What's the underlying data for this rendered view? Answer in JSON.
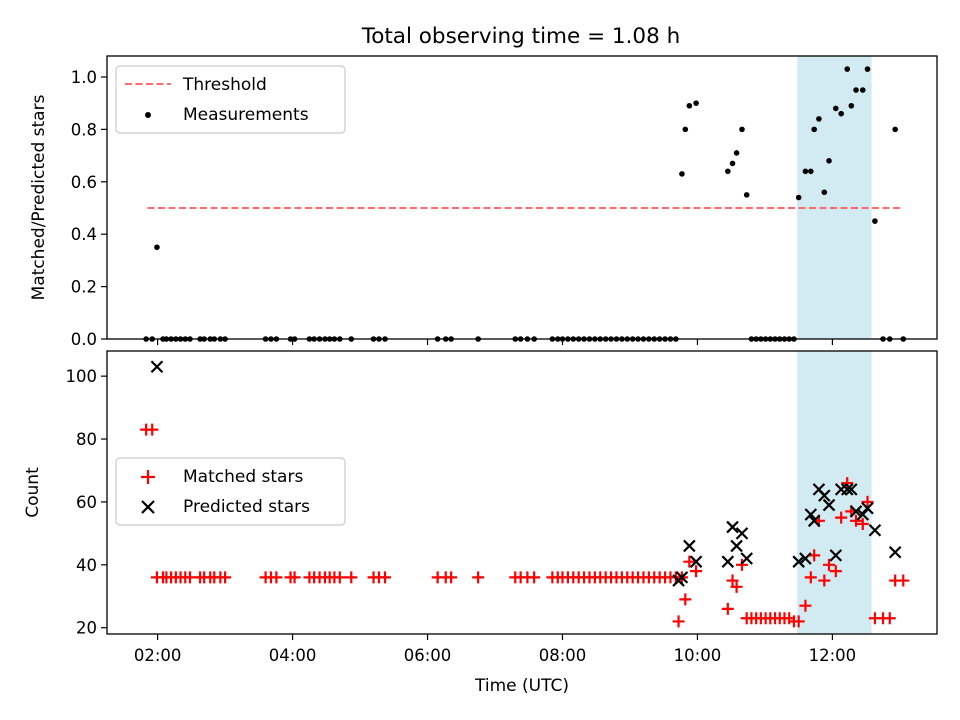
{
  "figure": {
    "title": "Total observing time = 1.08 h"
  },
  "chart_data": [
    {
      "type": "scatter",
      "panel": "top",
      "title": "Total observing time = 1.08 h",
      "ylabel": "Matched/Predicted stars",
      "xlabel": "",
      "x_unit": "hours UTC",
      "xlim": [
        1.25,
        13.55
      ],
      "ylim": [
        0.0,
        1.08
      ],
      "yticks": [
        0.0,
        0.2,
        0.4,
        0.6,
        0.8,
        1.0
      ],
      "ytick_labels": [
        "0.0",
        "0.2",
        "0.4",
        "0.6",
        "0.8",
        "1.0"
      ],
      "grid": false,
      "legend_position": "top-left",
      "highlight_span": [
        11.48,
        12.58
      ],
      "highlight_color": "#add8e6",
      "threshold": {
        "name": "Threshold",
        "y": 0.5,
        "x": [
          1.85,
          13.0
        ],
        "color": "#ff6b6b",
        "style": "dashed"
      },
      "series": [
        {
          "name": "Measurements",
          "color": "#000000",
          "marker": "dot",
          "points": [
            [
              1.83,
              0
            ],
            [
              1.92,
              0
            ],
            [
              1.99,
              0.35
            ],
            [
              2.08,
              0
            ],
            [
              2.13,
              0
            ],
            [
              2.2,
              0
            ],
            [
              2.27,
              0
            ],
            [
              2.34,
              0
            ],
            [
              2.41,
              0
            ],
            [
              2.48,
              0
            ],
            [
              2.63,
              0
            ],
            [
              2.69,
              0
            ],
            [
              2.78,
              0
            ],
            [
              2.84,
              0
            ],
            [
              2.93,
              0
            ],
            [
              3.0,
              0
            ],
            [
              3.6,
              0
            ],
            [
              3.68,
              0
            ],
            [
              3.76,
              0
            ],
            [
              3.97,
              0
            ],
            [
              4.03,
              0
            ],
            [
              4.25,
              0
            ],
            [
              4.32,
              0
            ],
            [
              4.4,
              0
            ],
            [
              4.48,
              0
            ],
            [
              4.55,
              0
            ],
            [
              4.62,
              0
            ],
            [
              4.7,
              0
            ],
            [
              4.87,
              0
            ],
            [
              5.2,
              0
            ],
            [
              5.28,
              0
            ],
            [
              5.37,
              0
            ],
            [
              6.15,
              0
            ],
            [
              6.27,
              0
            ],
            [
              6.35,
              0
            ],
            [
              6.75,
              0
            ],
            [
              7.3,
              0
            ],
            [
              7.38,
              0
            ],
            [
              7.48,
              0
            ],
            [
              7.58,
              0
            ],
            [
              7.85,
              0
            ],
            [
              7.93,
              0
            ],
            [
              8.0,
              0
            ],
            [
              8.08,
              0
            ],
            [
              8.16,
              0
            ],
            [
              8.24,
              0
            ],
            [
              8.32,
              0
            ],
            [
              8.4,
              0
            ],
            [
              8.48,
              0
            ],
            [
              8.56,
              0
            ],
            [
              8.64,
              0
            ],
            [
              8.72,
              0
            ],
            [
              8.8,
              0
            ],
            [
              8.88,
              0
            ],
            [
              8.96,
              0
            ],
            [
              9.04,
              0
            ],
            [
              9.12,
              0
            ],
            [
              9.2,
              0
            ],
            [
              9.28,
              0
            ],
            [
              9.36,
              0
            ],
            [
              9.44,
              0
            ],
            [
              9.52,
              0
            ],
            [
              9.6,
              0
            ],
            [
              9.68,
              0
            ],
            [
              9.77,
              0.63
            ],
            [
              9.82,
              0.8
            ],
            [
              9.88,
              0.89
            ],
            [
              9.98,
              0.9
            ],
            [
              10.45,
              0.64
            ],
            [
              10.52,
              0.67
            ],
            [
              10.58,
              0.71
            ],
            [
              10.66,
              0.8
            ],
            [
              10.73,
              0.55
            ],
            [
              10.8,
              0
            ],
            [
              10.87,
              0
            ],
            [
              10.94,
              0
            ],
            [
              11.01,
              0
            ],
            [
              11.08,
              0
            ],
            [
              11.15,
              0
            ],
            [
              11.22,
              0
            ],
            [
              11.29,
              0
            ],
            [
              11.36,
              0
            ],
            [
              11.43,
              0
            ],
            [
              11.5,
              0.54
            ],
            [
              11.6,
              0.64
            ],
            [
              11.68,
              0.64
            ],
            [
              11.73,
              0.8
            ],
            [
              11.8,
              0.84
            ],
            [
              11.88,
              0.56
            ],
            [
              11.95,
              0.68
            ],
            [
              12.05,
              0.88
            ],
            [
              12.13,
              0.86
            ],
            [
              12.22,
              1.03
            ],
            [
              12.28,
              0.89
            ],
            [
              12.35,
              0.95
            ],
            [
              12.45,
              0.95
            ],
            [
              12.52,
              1.03
            ],
            [
              12.63,
              0.45
            ],
            [
              12.75,
              0
            ],
            [
              12.85,
              0
            ],
            [
              12.93,
              0.8
            ],
            [
              13.05,
              0
            ]
          ]
        }
      ]
    },
    {
      "type": "scatter",
      "panel": "bottom",
      "title": "",
      "ylabel": "Count",
      "xlabel": "Time (UTC)",
      "x_unit": "hours UTC",
      "xlim": [
        1.25,
        13.55
      ],
      "ylim": [
        18,
        108
      ],
      "yticks": [
        20,
        40,
        60,
        80,
        100
      ],
      "ytick_labels": [
        "20",
        "40",
        "60",
        "80",
        "100"
      ],
      "xticks": [
        2,
        4,
        6,
        8,
        10,
        12
      ],
      "xtick_labels": [
        "02:00",
        "04:00",
        "06:00",
        "08:00",
        "10:00",
        "12:00"
      ],
      "grid": false,
      "legend_position": "center-left",
      "highlight_span": [
        11.48,
        12.58
      ],
      "highlight_color": "#add8e6",
      "series": [
        {
          "name": "Matched stars",
          "color": "#ff0000",
          "marker": "plus",
          "points": [
            [
              1.83,
              83
            ],
            [
              1.92,
              83
            ],
            [
              1.99,
              36
            ],
            [
              2.08,
              36
            ],
            [
              2.13,
              36
            ],
            [
              2.2,
              36
            ],
            [
              2.27,
              36
            ],
            [
              2.34,
              36
            ],
            [
              2.41,
              36
            ],
            [
              2.48,
              36
            ],
            [
              2.63,
              36
            ],
            [
              2.69,
              36
            ],
            [
              2.78,
              36
            ],
            [
              2.84,
              36
            ],
            [
              2.93,
              36
            ],
            [
              3.0,
              36
            ],
            [
              3.6,
              36
            ],
            [
              3.68,
              36
            ],
            [
              3.76,
              36
            ],
            [
              3.97,
              36
            ],
            [
              4.03,
              36
            ],
            [
              4.25,
              36
            ],
            [
              4.32,
              36
            ],
            [
              4.4,
              36
            ],
            [
              4.48,
              36
            ],
            [
              4.55,
              36
            ],
            [
              4.62,
              36
            ],
            [
              4.7,
              36
            ],
            [
              4.87,
              36
            ],
            [
              5.2,
              36
            ],
            [
              5.28,
              36
            ],
            [
              5.37,
              36
            ],
            [
              6.15,
              36
            ],
            [
              6.27,
              36
            ],
            [
              6.35,
              36
            ],
            [
              6.75,
              36
            ],
            [
              7.3,
              36
            ],
            [
              7.38,
              36
            ],
            [
              7.48,
              36
            ],
            [
              7.58,
              36
            ],
            [
              7.85,
              36
            ],
            [
              7.93,
              36
            ],
            [
              8.0,
              36
            ],
            [
              8.08,
              36
            ],
            [
              8.16,
              36
            ],
            [
              8.24,
              36
            ],
            [
              8.32,
              36
            ],
            [
              8.4,
              36
            ],
            [
              8.48,
              36
            ],
            [
              8.56,
              36
            ],
            [
              8.64,
              36
            ],
            [
              8.72,
              36
            ],
            [
              8.8,
              36
            ],
            [
              8.88,
              36
            ],
            [
              8.96,
              36
            ],
            [
              9.04,
              36
            ],
            [
              9.12,
              36
            ],
            [
              9.2,
              36
            ],
            [
              9.28,
              36
            ],
            [
              9.36,
              36
            ],
            [
              9.44,
              36
            ],
            [
              9.52,
              36
            ],
            [
              9.6,
              36
            ],
            [
              9.68,
              36
            ],
            [
              9.72,
              22
            ],
            [
              9.77,
              36
            ],
            [
              9.82,
              29
            ],
            [
              9.88,
              41
            ],
            [
              9.98,
              38
            ],
            [
              10.45,
              26
            ],
            [
              10.52,
              35
            ],
            [
              10.58,
              33
            ],
            [
              10.66,
              40
            ],
            [
              10.73,
              23
            ],
            [
              10.8,
              23
            ],
            [
              10.87,
              23
            ],
            [
              10.94,
              23
            ],
            [
              11.01,
              23
            ],
            [
              11.08,
              23
            ],
            [
              11.15,
              23
            ],
            [
              11.22,
              23
            ],
            [
              11.29,
              23
            ],
            [
              11.36,
              23
            ],
            [
              11.43,
              22
            ],
            [
              11.5,
              22
            ],
            [
              11.6,
              27
            ],
            [
              11.68,
              36
            ],
            [
              11.73,
              43
            ],
            [
              11.8,
              54
            ],
            [
              11.88,
              35
            ],
            [
              11.95,
              40
            ],
            [
              12.05,
              38
            ],
            [
              12.13,
              55
            ],
            [
              12.22,
              66
            ],
            [
              12.28,
              57
            ],
            [
              12.35,
              54
            ],
            [
              12.45,
              53
            ],
            [
              12.52,
              60
            ],
            [
              12.63,
              23
            ],
            [
              12.75,
              23
            ],
            [
              12.85,
              23
            ],
            [
              12.93,
              35
            ],
            [
              13.05,
              35
            ]
          ]
        },
        {
          "name": "Predicted stars",
          "color": "#000000",
          "marker": "x",
          "points": [
            [
              1.99,
              103
            ],
            [
              9.72,
              35
            ],
            [
              9.77,
              36
            ],
            [
              9.88,
              46
            ],
            [
              9.98,
              41
            ],
            [
              10.45,
              41
            ],
            [
              10.52,
              52
            ],
            [
              10.58,
              46
            ],
            [
              10.66,
              50
            ],
            [
              10.73,
              42
            ],
            [
              11.5,
              41
            ],
            [
              11.6,
              42
            ],
            [
              11.68,
              56
            ],
            [
              11.73,
              54
            ],
            [
              11.8,
              64
            ],
            [
              11.88,
              62
            ],
            [
              11.95,
              59
            ],
            [
              12.05,
              43
            ],
            [
              12.13,
              64
            ],
            [
              12.22,
              64
            ],
            [
              12.28,
              64
            ],
            [
              12.35,
              57
            ],
            [
              12.45,
              56
            ],
            [
              12.52,
              58
            ],
            [
              12.63,
              51
            ],
            [
              12.93,
              44
            ]
          ]
        }
      ]
    }
  ]
}
